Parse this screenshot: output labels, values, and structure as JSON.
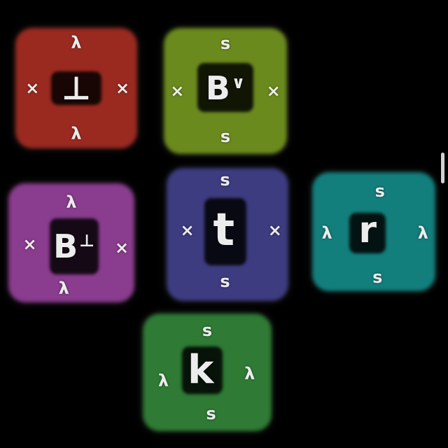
{
  "colors": {
    "background": "#000000",
    "glyph": "#ececec",
    "label": "#ececec"
  },
  "tiles": [
    {
      "id": "red",
      "color": "#9a2a20",
      "glyph": "⊥",
      "glyph_sup": "",
      "labels": {
        "top": "λ",
        "bottom": "λ",
        "left": "×",
        "right": "×"
      }
    },
    {
      "id": "olive",
      "color": "#6b8a1e",
      "glyph": "B",
      "glyph_sup": "∨",
      "labels": {
        "top": "s",
        "bottom": "s",
        "left": "×",
        "right": "×"
      }
    },
    {
      "id": "purple",
      "color": "#8a3c8e",
      "glyph": "B",
      "glyph_sup": "⊥",
      "labels": {
        "top": "λ",
        "bottom": "λ",
        "left": "×",
        "right": "×"
      }
    },
    {
      "id": "indigo",
      "color": "#3d3c80",
      "glyph": "t",
      "glyph_sup": "",
      "labels": {
        "top": "s",
        "bottom": "s",
        "left": "×",
        "right": "×"
      }
    },
    {
      "id": "teal",
      "color": "#127f7c",
      "glyph": "r",
      "glyph_sup": "",
      "labels": {
        "top": "s",
        "bottom": "s",
        "left": "λ",
        "right": "λ"
      }
    },
    {
      "id": "green",
      "color": "#2f7a35",
      "glyph": "k",
      "glyph_sup": "",
      "labels": {
        "top": "s",
        "bottom": "s",
        "left": "λ",
        "right": "λ"
      }
    }
  ]
}
